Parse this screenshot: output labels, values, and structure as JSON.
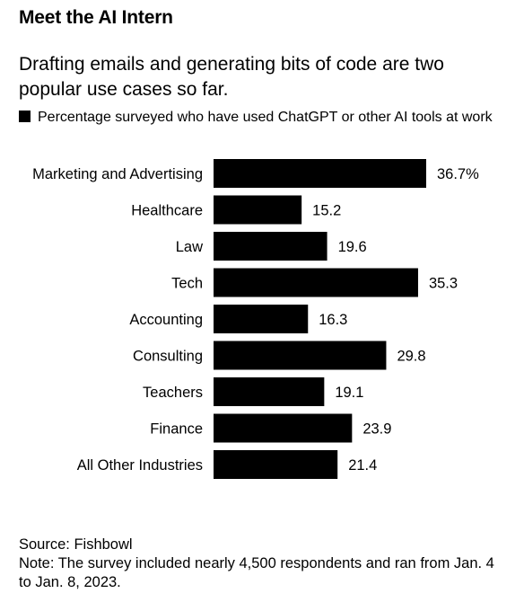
{
  "header": {
    "title": "Meet the AI Intern",
    "subtitle": "Drafting emails and generating bits of code are two popular use cases so far."
  },
  "legend": {
    "label": "Percentage surveyed who have used ChatGPT or other AI tools at work",
    "color": "#000000"
  },
  "chart_data": {
    "type": "bar",
    "orientation": "horizontal",
    "categories": [
      "Marketing and Advertising",
      "Healthcare",
      "Law",
      "Tech",
      "Accounting",
      "Consulting",
      "Teachers",
      "Finance",
      "All Other Industries"
    ],
    "series": [
      {
        "name": "Percentage surveyed who have used ChatGPT or other AI tools at work",
        "values": [
          36.7,
          15.2,
          19.6,
          35.3,
          16.3,
          29.8,
          19.1,
          23.9,
          21.4
        ],
        "value_labels": [
          "36.7%",
          "15.2",
          "19.6",
          "35.3",
          "16.3",
          "29.8",
          "19.1",
          "23.9",
          "21.4"
        ],
        "color": "#000000"
      }
    ],
    "xlim": [
      0,
      36.7
    ],
    "grid": false,
    "legend_position": "top-left"
  },
  "footer": {
    "source": "Source: Fishbowl",
    "note": "Note: The survey included nearly 4,500 respondents and ran from Jan. 4 to Jan. 8, 2023."
  }
}
